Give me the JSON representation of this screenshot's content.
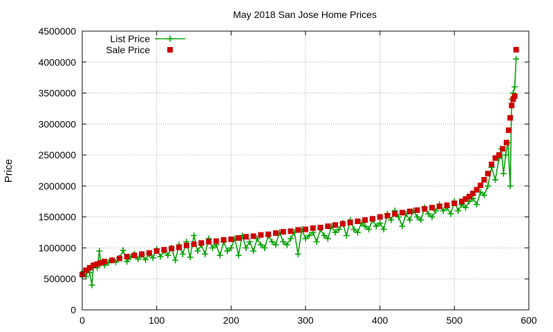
{
  "chart_data": {
    "type": "scatter",
    "title": "May 2018 San Jose Home Prices",
    "xlabel": "",
    "ylabel": "Price",
    "xlim": [
      0,
      600
    ],
    "ylim": [
      0,
      4500000
    ],
    "xticks": [
      0,
      100,
      200,
      300,
      400,
      500,
      600
    ],
    "yticks": [
      0,
      500000,
      1000000,
      1500000,
      2000000,
      2500000,
      3000000,
      3500000,
      4000000,
      4500000
    ],
    "grid": true,
    "legend": "top-left",
    "series": [
      {
        "name": "List Price",
        "style": "linespoints",
        "color": "#00a000",
        "marker": "plus",
        "x": [
          0,
          2,
          5,
          8,
          10,
          13,
          15,
          18,
          20,
          23,
          25,
          28,
          30,
          35,
          40,
          45,
          50,
          55,
          60,
          65,
          70,
          75,
          80,
          85,
          90,
          95,
          100,
          105,
          110,
          115,
          120,
          125,
          130,
          135,
          140,
          145,
          150,
          155,
          160,
          165,
          170,
          175,
          180,
          185,
          190,
          195,
          200,
          205,
          210,
          215,
          220,
          225,
          230,
          235,
          240,
          245,
          250,
          255,
          260,
          265,
          270,
          275,
          280,
          285,
          290,
          295,
          300,
          305,
          310,
          315,
          320,
          325,
          330,
          335,
          340,
          345,
          350,
          355,
          360,
          365,
          370,
          375,
          380,
          385,
          390,
          395,
          400,
          405,
          410,
          415,
          420,
          425,
          430,
          435,
          440,
          445,
          450,
          455,
          460,
          465,
          470,
          475,
          480,
          485,
          490,
          495,
          500,
          505,
          510,
          515,
          520,
          525,
          530,
          535,
          540,
          545,
          550,
          555,
          560,
          563,
          566,
          569,
          572,
          575,
          577,
          579,
          581,
          583
        ],
        "values": [
          560000,
          620000,
          540000,
          640000,
          600000,
          400000,
          700000,
          720000,
          680000,
          950000,
          750000,
          780000,
          720000,
          760000,
          800000,
          770000,
          840000,
          960000,
          780000,
          850000,
          900000,
          820000,
          880000,
          810000,
          900000,
          840000,
          980000,
          860000,
          950000,
          880000,
          1000000,
          800000,
          1050000,
          900000,
          1100000,
          850000,
          1200000,
          950000,
          1050000,
          900000,
          1150000,
          1000000,
          1050000,
          880000,
          1100000,
          950000,
          1000000,
          1150000,
          880000,
          1200000,
          1000000,
          1100000,
          950000,
          1150000,
          1050000,
          1000000,
          1200000,
          1100000,
          1050000,
          1250000,
          1100000,
          1050000,
          1150000,
          1250000,
          900000,
          1300000,
          1150000,
          1200000,
          1250000,
          1100000,
          1300000,
          1200000,
          1150000,
          1350000,
          1250000,
          1300000,
          1400000,
          1200000,
          1450000,
          1300000,
          1250000,
          1400000,
          1350000,
          1300000,
          1450000,
          1350000,
          1400000,
          1300000,
          1550000,
          1450000,
          1600000,
          1500000,
          1350000,
          1550000,
          1450000,
          1600000,
          1500000,
          1450000,
          1650000,
          1550000,
          1500000,
          1600000,
          1700000,
          1600000,
          1650000,
          1550000,
          1750000,
          1600000,
          1700000,
          1650000,
          1750000,
          1800000,
          1700000,
          1900000,
          1850000,
          2000000,
          2300000,
          2100000,
          2450000,
          2600000,
          2200000,
          2500000,
          2700000,
          2000000,
          3400000,
          3500000,
          3600000,
          4050000
        ]
      },
      {
        "name": "Sale Price",
        "style": "points",
        "color": "#cc0000",
        "marker": "square",
        "x": [
          0,
          5,
          10,
          15,
          20,
          25,
          30,
          40,
          50,
          60,
          70,
          80,
          90,
          100,
          110,
          120,
          130,
          140,
          150,
          160,
          170,
          180,
          190,
          200,
          210,
          220,
          230,
          240,
          250,
          260,
          270,
          280,
          290,
          300,
          310,
          320,
          330,
          340,
          350,
          360,
          370,
          380,
          390,
          400,
          410,
          420,
          430,
          440,
          450,
          460,
          470,
          480,
          490,
          500,
          510,
          515,
          520,
          525,
          530,
          535,
          540,
          545,
          550,
          555,
          560,
          565,
          570,
          573,
          575,
          577,
          579,
          581,
          583
        ],
        "values": [
          570000,
          640000,
          680000,
          720000,
          740000,
          760000,
          780000,
          800000,
          830000,
          860000,
          880000,
          900000,
          920000,
          950000,
          970000,
          990000,
          1010000,
          1040000,
          1060000,
          1080000,
          1100000,
          1110000,
          1130000,
          1140000,
          1160000,
          1180000,
          1190000,
          1210000,
          1220000,
          1240000,
          1260000,
          1270000,
          1290000,
          1300000,
          1320000,
          1330000,
          1350000,
          1370000,
          1390000,
          1410000,
          1430000,
          1450000,
          1470000,
          1500000,
          1520000,
          1550000,
          1570000,
          1590000,
          1610000,
          1630000,
          1650000,
          1670000,
          1690000,
          1720000,
          1750000,
          1790000,
          1830000,
          1880000,
          1940000,
          2010000,
          2100000,
          2200000,
          2350000,
          2450000,
          2500000,
          2600000,
          2700000,
          2900000,
          3100000,
          3300000,
          3400000,
          3450000,
          4200000
        ]
      }
    ]
  }
}
